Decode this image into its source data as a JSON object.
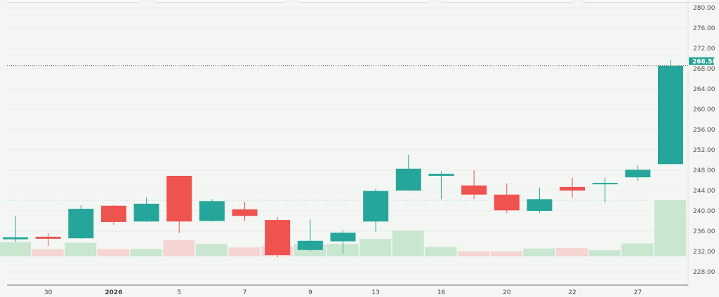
{
  "chart_data": {
    "type": "candlestick",
    "title": "",
    "xlabel": "",
    "ylabel": "",
    "ylim": [
      226,
      281
    ],
    "y_ticks": [
      "280.00",
      "276.00",
      "272.00",
      "268.00",
      "264.00",
      "260.00",
      "256.00",
      "252.00",
      "248.00",
      "244.00",
      "240.00",
      "236.00",
      "232.00",
      "228.00"
    ],
    "x_tick_labels": [
      {
        "label": "30",
        "index": 1
      },
      {
        "label": "2026",
        "index": 3
      },
      {
        "label": "5",
        "index": 5
      },
      {
        "label": "7",
        "index": 7
      },
      {
        "label": "9",
        "index": 9
      },
      {
        "label": "13",
        "index": 11
      },
      {
        "label": "16",
        "index": 13
      },
      {
        "label": "20",
        "index": 15
      },
      {
        "label": "22",
        "index": 17
      },
      {
        "label": "27",
        "index": 19
      }
    ],
    "last_price": "268.58",
    "colors": {
      "up": "#26a69a",
      "down": "#ef5350",
      "volume_up": "#c8e6d0",
      "volume_down": "#f5d5d3",
      "background": "#f3f6f3"
    },
    "candles": [
      {
        "o": 234.4,
        "h": 239.0,
        "l": 233.9,
        "c": 234.8,
        "vol": 0.25
      },
      {
        "o": 234.9,
        "h": 235.6,
        "l": 233.1,
        "c": 234.5,
        "vol": 0.13
      },
      {
        "o": 234.6,
        "h": 241.1,
        "l": 234.5,
        "c": 240.4,
        "vol": 0.24
      },
      {
        "o": 241.0,
        "h": 241.2,
        "l": 237.2,
        "c": 237.8,
        "vol": 0.13
      },
      {
        "o": 237.9,
        "h": 242.6,
        "l": 237.8,
        "c": 241.4,
        "vol": 0.13
      },
      {
        "o": 246.9,
        "h": 246.9,
        "l": 235.6,
        "c": 237.9,
        "vol": 0.29
      },
      {
        "o": 238.0,
        "h": 242.3,
        "l": 237.9,
        "c": 241.9,
        "vol": 0.22
      },
      {
        "o": 240.3,
        "h": 241.8,
        "l": 238.0,
        "c": 239.0,
        "vol": 0.16
      },
      {
        "o": 238.2,
        "h": 238.8,
        "l": 230.9,
        "c": 231.3,
        "vol": 0.18
      },
      {
        "o": 232.3,
        "h": 238.3,
        "l": 232.0,
        "c": 234.1,
        "vol": 0.22
      },
      {
        "o": 234.0,
        "h": 236.2,
        "l": 231.6,
        "c": 235.7,
        "vol": 0.22
      },
      {
        "o": 237.9,
        "h": 244.3,
        "l": 235.9,
        "c": 243.9,
        "vol": 0.31
      },
      {
        "o": 244.0,
        "h": 251.0,
        "l": 243.9,
        "c": 248.3,
        "vol": 0.46
      },
      {
        "o": 246.9,
        "h": 247.8,
        "l": 242.3,
        "c": 247.3,
        "vol": 0.17
      },
      {
        "o": 245.0,
        "h": 248.0,
        "l": 242.3,
        "c": 243.2,
        "vol": 0.09
      },
      {
        "o": 243.2,
        "h": 245.4,
        "l": 239.6,
        "c": 240.1,
        "vol": 0.09
      },
      {
        "o": 240.0,
        "h": 244.6,
        "l": 239.6,
        "c": 242.3,
        "vol": 0.14
      },
      {
        "o": 244.7,
        "h": 246.5,
        "l": 242.6,
        "c": 244.0,
        "vol": 0.15
      },
      {
        "o": 245.3,
        "h": 246.5,
        "l": 241.6,
        "c": 245.5,
        "vol": 0.11
      },
      {
        "o": 246.6,
        "h": 249.0,
        "l": 245.9,
        "c": 248.1,
        "vol": 0.23
      },
      {
        "o": 249.2,
        "h": 269.6,
        "l": 249.2,
        "c": 268.58,
        "vol": 1.0
      }
    ],
    "grid": true
  }
}
